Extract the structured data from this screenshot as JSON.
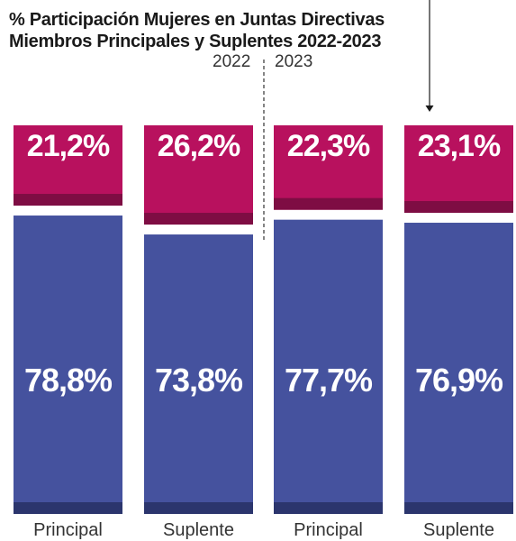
{
  "title": {
    "line1": "% Participación Mujeres en Juntas Directivas",
    "line2": "Miembros Principales y Suplentes 2022-2023"
  },
  "years": [
    "2022",
    "2023"
  ],
  "colors": {
    "women": "#b8115e",
    "women_shade": "#7e0d43",
    "men": "#45529e",
    "men_shade": "#2b356d",
    "label": "#ffffff",
    "category": "#333333"
  },
  "chart_data": {
    "type": "bar",
    "stacked": true,
    "categories": [
      "Principal",
      "Suplente",
      "Principal",
      "Suplente"
    ],
    "groups": [
      "2022",
      "2022",
      "2023",
      "2023"
    ],
    "series": [
      {
        "values": [
          21.2,
          26.2,
          22.3,
          23.1
        ],
        "labels": [
          "21,2%",
          "26,2%",
          "22,3%",
          "23,1%"
        ]
      },
      {
        "values": [
          78.8,
          73.8,
          77.7,
          76.9
        ],
        "labels": [
          "78,8%",
          "73,8%",
          "77,7%",
          "76,9%"
        ]
      }
    ],
    "ylim": [
      0,
      100
    ]
  }
}
